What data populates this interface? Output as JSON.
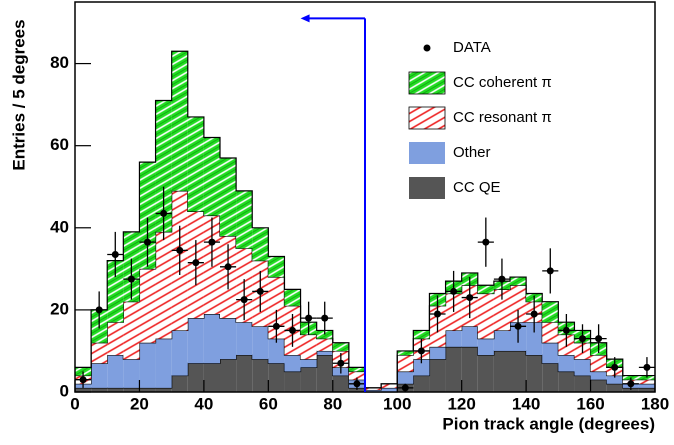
{
  "chart_data": {
    "type": "histogram",
    "bins": [
      0,
      5,
      10,
      15,
      20,
      25,
      30,
      35,
      40,
      45,
      50,
      55,
      60,
      65,
      70,
      75,
      80,
      85,
      90,
      95,
      100,
      105,
      110,
      115,
      120,
      125,
      130,
      135,
      140,
      145,
      150,
      155,
      160,
      165,
      170,
      175,
      180
    ],
    "series": [
      {
        "name": "CC QE",
        "color": "#555555",
        "values": [
          1,
          1,
          1,
          1,
          1,
          1,
          4,
          7,
          7,
          8,
          9,
          8,
          7,
          5,
          6,
          9,
          4,
          1,
          0,
          0,
          2,
          4,
          8,
          11,
          11,
          9,
          10,
          10,
          9,
          7,
          5,
          4,
          3,
          2,
          1,
          1
        ]
      },
      {
        "name": "Other",
        "color": "#7f9fdf",
        "values": [
          1,
          6,
          8,
          7,
          11,
          12,
          11,
          11,
          12,
          10,
          8,
          8,
          6,
          4,
          2,
          1,
          2,
          2,
          0.5,
          1,
          3,
          4,
          3,
          4,
          5,
          4,
          5,
          7,
          8,
          5,
          4,
          4,
          2,
          2,
          1,
          1
        ]
      },
      {
        "name": "CC resonant π",
        "color": "#ee2222",
        "hatch": true,
        "values": [
          2,
          5,
          8,
          14,
          18,
          26,
          34,
          26,
          24,
          20,
          18,
          16,
          15,
          12,
          6,
          3,
          4,
          2,
          0.5,
          1,
          4,
          5,
          10,
          9,
          10,
          11,
          10,
          9,
          5,
          5,
          5,
          4,
          4,
          2,
          1,
          1
        ]
      },
      {
        "name": "CC coherent π",
        "color": "#22dd22",
        "hatch": true,
        "values": [
          2,
          8,
          15,
          17,
          26,
          32,
          34,
          23,
          19,
          19,
          14,
          8,
          5,
          4,
          3,
          2,
          2,
          1,
          0,
          0,
          1,
          2,
          3,
          3,
          3,
          2,
          2,
          2,
          2,
          5,
          3,
          3,
          3,
          2,
          1,
          1
        ]
      }
    ],
    "data": {
      "name": "DATA",
      "color": "#000000",
      "x": [
        2.5,
        7.5,
        12.5,
        17.5,
        22.5,
        27.5,
        32.5,
        37.5,
        42.5,
        47.5,
        52.5,
        57.5,
        62.5,
        67.5,
        72.5,
        77.5,
        82.5,
        87.5,
        92.5,
        97.5,
        102.5,
        107.5,
        112.5,
        117.5,
        122.5,
        127.5,
        132.5,
        137.5,
        142.5,
        147.5,
        152.5,
        157.5,
        162.5,
        167.5,
        172.5,
        177.5
      ],
      "values": [
        3,
        20,
        33.5,
        27.5,
        36.5,
        43.5,
        34.5,
        31.5,
        36.5,
        30.5,
        22.5,
        24.5,
        16,
        15,
        18,
        18,
        7,
        2,
        null,
        null,
        1,
        10,
        19,
        24.5,
        23,
        36.5,
        27.5,
        16,
        19,
        29.5,
        15,
        13,
        13,
        6,
        2,
        6
      ],
      "errors": [
        2,
        4.5,
        5.5,
        5,
        6,
        6.5,
        6,
        5.5,
        6,
        5.5,
        5,
        5,
        4,
        4,
        4,
        4,
        2.5,
        1.5,
        null,
        null,
        1,
        3,
        4.5,
        5,
        5,
        6,
        5,
        4,
        4.5,
        5.5,
        4,
        3.5,
        3.5,
        2.5,
        1.5,
        2.5
      ]
    },
    "cut": {
      "x": 90,
      "arrow_end_x": 70,
      "arrow_y": 91,
      "color": "#0000ff"
    },
    "xlabel": "Pion track angle (degrees)",
    "ylabel": "Entries / 5 degrees",
    "xlim": [
      0,
      180
    ],
    "ylim": [
      0,
      95
    ],
    "xticks": [
      0,
      20,
      40,
      60,
      80,
      100,
      120,
      140,
      160,
      180
    ],
    "yticks": [
      0,
      20,
      40,
      60,
      80
    ],
    "legend": "upper right"
  }
}
